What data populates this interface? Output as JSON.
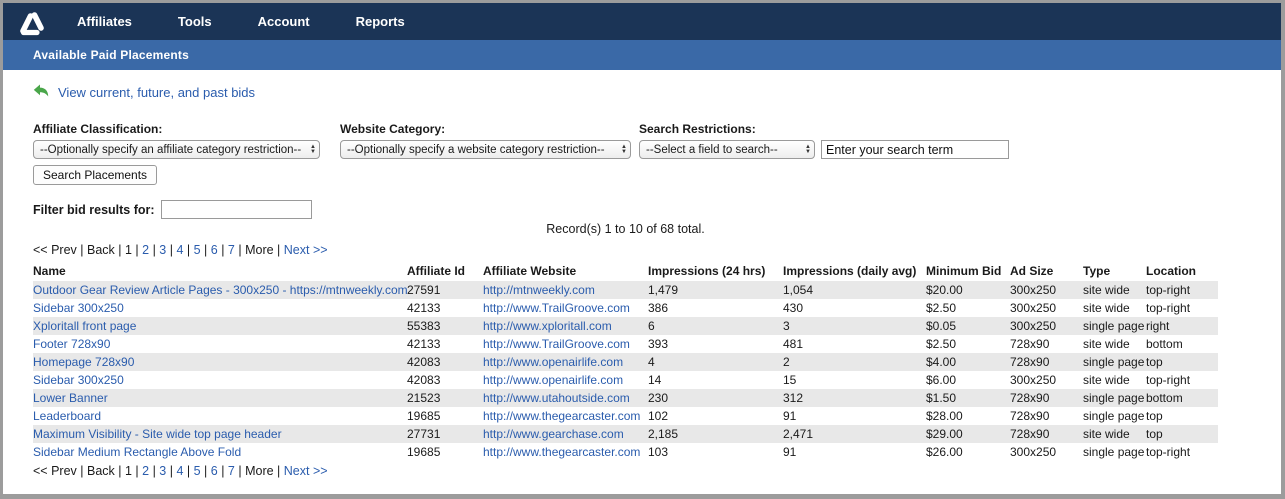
{
  "colors": {
    "navbar_bg": "#1b3456",
    "subheader_bg": "#3a69a7",
    "link_blue": "#2a5cad",
    "row_stripe": "#e8e8e8",
    "arrow_green": "#4aa64a"
  },
  "nav": {
    "items": [
      "Affiliates",
      "Tools",
      "Account",
      "Reports"
    ]
  },
  "subheader": {
    "title": "Available Paid Placements"
  },
  "bids_link": {
    "label": "View current, future, and past bids"
  },
  "filters": {
    "affiliate_classification": {
      "label": "Affiliate Classification:",
      "selected": "--Optionally specify an affiliate category restriction--"
    },
    "website_category": {
      "label": "Website Category:",
      "selected": "--Optionally specify a website category restriction--"
    },
    "search_restrictions": {
      "label": "Search Restrictions:",
      "selected": "--Select a field to search--",
      "search_value": "Enter your search term"
    },
    "search_button": "Search Placements",
    "filter_label": "Filter bid results for:",
    "filter_value": ""
  },
  "record_summary": "Record(s) 1 to 10 of 68 total.",
  "pagination": {
    "items": [
      {
        "label": "<< Prev",
        "link": false
      },
      {
        "label": "Back",
        "link": false
      },
      {
        "label": "1",
        "link": false
      },
      {
        "label": "2",
        "link": true
      },
      {
        "label": "3",
        "link": true
      },
      {
        "label": "4",
        "link": true
      },
      {
        "label": "5",
        "link": true
      },
      {
        "label": "6",
        "link": true
      },
      {
        "label": "7",
        "link": true
      },
      {
        "label": "More",
        "link": false
      },
      {
        "label": "Next >>",
        "link": true
      }
    ]
  },
  "table": {
    "headers": [
      "Name",
      "Affiliate Id",
      "Affiliate Website",
      "Impressions (24 hrs)",
      "Impressions (daily avg)",
      "Minimum Bid",
      "Ad Size",
      "Type",
      "Location"
    ],
    "rows": [
      {
        "name": "Outdoor Gear Review Article Pages - 300x250 - https://mtnweekly.com",
        "affiliate_id": "27591",
        "website": "http://mtnweekly.com",
        "imp_24h": "1,479",
        "imp_avg": "1,054",
        "min_bid": "$20.00",
        "ad_size": "300x250",
        "type": "site wide",
        "location": "top-right"
      },
      {
        "name": "Sidebar 300x250",
        "affiliate_id": "42133",
        "website": "http://www.TrailGroove.com",
        "imp_24h": "386",
        "imp_avg": "430",
        "min_bid": "$2.50",
        "ad_size": "300x250",
        "type": "site wide",
        "location": "top-right"
      },
      {
        "name": "Xploritall front page",
        "affiliate_id": "55383",
        "website": "http://www.xploritall.com",
        "imp_24h": "6",
        "imp_avg": "3",
        "min_bid": "$0.05",
        "ad_size": "300x250",
        "type": "single page",
        "location": "right"
      },
      {
        "name": "Footer 728x90",
        "affiliate_id": "42133",
        "website": "http://www.TrailGroove.com",
        "imp_24h": "393",
        "imp_avg": "481",
        "min_bid": "$2.50",
        "ad_size": "728x90",
        "type": "site wide",
        "location": "bottom"
      },
      {
        "name": "Homepage 728x90",
        "affiliate_id": "42083",
        "website": "http://www.openairlife.com",
        "imp_24h": "4",
        "imp_avg": "2",
        "min_bid": "$4.00",
        "ad_size": "728x90",
        "type": "single page",
        "location": "top"
      },
      {
        "name": "Sidebar 300x250",
        "affiliate_id": "42083",
        "website": "http://www.openairlife.com",
        "imp_24h": "14",
        "imp_avg": "15",
        "min_bid": "$6.00",
        "ad_size": "300x250",
        "type": "site wide",
        "location": "top-right"
      },
      {
        "name": "Lower Banner",
        "affiliate_id": "21523",
        "website": "http://www.utahoutside.com",
        "imp_24h": "230",
        "imp_avg": "312",
        "min_bid": "$1.50",
        "ad_size": "728x90",
        "type": "single page",
        "location": "bottom"
      },
      {
        "name": "Leaderboard",
        "affiliate_id": "19685",
        "website": "http://www.thegearcaster.com",
        "imp_24h": "102",
        "imp_avg": "91",
        "min_bid": "$28.00",
        "ad_size": "728x90",
        "type": "single page",
        "location": "top"
      },
      {
        "name": "Maximum Visibility - Site wide top page header",
        "affiliate_id": "27731",
        "website": "http://www.gearchase.com",
        "imp_24h": "2,185",
        "imp_avg": "2,471",
        "min_bid": "$29.00",
        "ad_size": "728x90",
        "type": "site wide",
        "location": "top"
      },
      {
        "name": "Sidebar Medium Rectangle Above Fold",
        "affiliate_id": "19685",
        "website": "http://www.thegearcaster.com",
        "imp_24h": "103",
        "imp_avg": "91",
        "min_bid": "$26.00",
        "ad_size": "300x250",
        "type": "single page",
        "location": "top-right"
      }
    ]
  }
}
